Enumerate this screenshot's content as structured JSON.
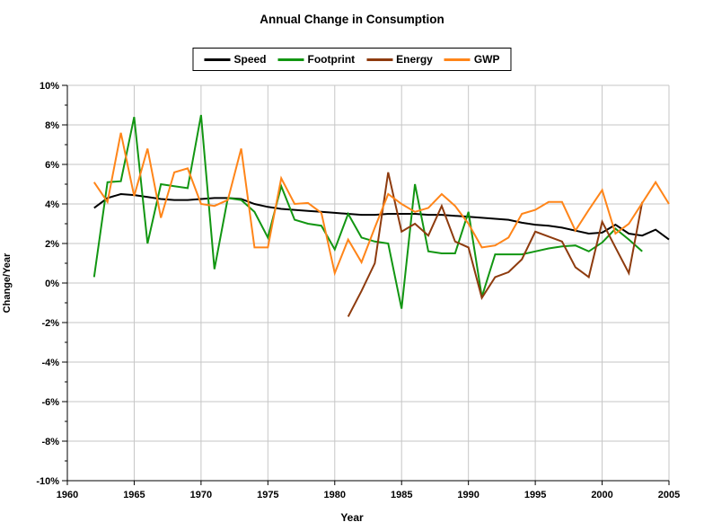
{
  "title": "Annual Change in Consumption",
  "chart_data": {
    "type": "line",
    "title": "Annual Change in Consumption",
    "xlabel": "Year",
    "ylabel": "Change/Year",
    "xlim": [
      1960,
      2005
    ],
    "ylim": [
      -10,
      10
    ],
    "x_ticks": [
      1960,
      1965,
      1970,
      1975,
      1980,
      1985,
      1990,
      1995,
      2000,
      2005
    ],
    "y_ticks": [
      10,
      8,
      6,
      4,
      2,
      0,
      -2,
      -4,
      -6,
      -8,
      -10
    ],
    "y_tick_suffix": "%",
    "y_minor_tick_step": 1,
    "grid": true,
    "legend_position": "top-center",
    "background": "#ffffff",
    "grid_color": "#c6c6c6",
    "axis_color": "#000000",
    "series": [
      {
        "name": "Speed",
        "color": "#000000",
        "points": [
          [
            1962,
            3.8
          ],
          [
            1963,
            4.3
          ],
          [
            1964,
            4.5
          ],
          [
            1965,
            4.45
          ],
          [
            1966,
            4.35
          ],
          [
            1967,
            4.25
          ],
          [
            1968,
            4.2
          ],
          [
            1969,
            4.2
          ],
          [
            1970,
            4.25
          ],
          [
            1971,
            4.3
          ],
          [
            1972,
            4.3
          ],
          [
            1973,
            4.25
          ],
          [
            1974,
            4.0
          ],
          [
            1975,
            3.85
          ],
          [
            1976,
            3.75
          ],
          [
            1977,
            3.7
          ],
          [
            1978,
            3.65
          ],
          [
            1979,
            3.6
          ],
          [
            1980,
            3.55
          ],
          [
            1981,
            3.5
          ],
          [
            1982,
            3.45
          ],
          [
            1983,
            3.45
          ],
          [
            1984,
            3.5
          ],
          [
            1985,
            3.5
          ],
          [
            1986,
            3.5
          ],
          [
            1987,
            3.45
          ],
          [
            1988,
            3.45
          ],
          [
            1989,
            3.4
          ],
          [
            1990,
            3.35
          ],
          [
            1991,
            3.3
          ],
          [
            1992,
            3.25
          ],
          [
            1993,
            3.2
          ],
          [
            1994,
            3.05
          ],
          [
            1995,
            2.95
          ],
          [
            1996,
            2.9
          ],
          [
            1997,
            2.8
          ],
          [
            1998,
            2.65
          ],
          [
            1999,
            2.5
          ],
          [
            2000,
            2.55
          ],
          [
            2001,
            2.95
          ],
          [
            2002,
            2.5
          ],
          [
            2003,
            2.4
          ],
          [
            2004,
            2.7
          ],
          [
            2005,
            2.2
          ]
        ]
      },
      {
        "name": "Footprint",
        "color": "#129612",
        "points": [
          [
            1962,
            0.3
          ],
          [
            1963,
            5.1
          ],
          [
            1964,
            5.15
          ],
          [
            1965,
            8.4
          ],
          [
            1966,
            2.0
          ],
          [
            1967,
            5.0
          ],
          [
            1968,
            4.9
          ],
          [
            1969,
            4.8
          ],
          [
            1970,
            8.5
          ],
          [
            1971,
            0.7
          ],
          [
            1972,
            4.3
          ],
          [
            1973,
            4.2
          ],
          [
            1974,
            3.6
          ],
          [
            1975,
            2.3
          ],
          [
            1976,
            4.9
          ],
          [
            1977,
            3.2
          ],
          [
            1978,
            3.0
          ],
          [
            1979,
            2.9
          ],
          [
            1980,
            1.7
          ],
          [
            1981,
            3.5
          ],
          [
            1982,
            2.3
          ],
          [
            1983,
            2.1
          ],
          [
            1984,
            2.0
          ],
          [
            1985,
            -1.3
          ],
          [
            1986,
            5.0
          ],
          [
            1987,
            1.6
          ],
          [
            1988,
            1.5
          ],
          [
            1989,
            1.5
          ],
          [
            1990,
            3.6
          ],
          [
            1991,
            -0.7
          ],
          [
            1992,
            1.45
          ],
          [
            1993,
            1.45
          ],
          [
            1994,
            1.45
          ],
          [
            1995,
            1.6
          ],
          [
            1996,
            1.75
          ],
          [
            1997,
            1.85
          ],
          [
            1998,
            1.9
          ],
          [
            1999,
            1.6
          ],
          [
            2000,
            2.05
          ],
          [
            2001,
            2.75
          ],
          [
            2002,
            2.2
          ],
          [
            2003,
            1.6
          ]
        ]
      },
      {
        "name": "Energy",
        "color": "#8E3B0E",
        "points": [
          [
            1981,
            -1.7
          ],
          [
            1982,
            -0.4
          ],
          [
            1983,
            1.0
          ],
          [
            1984,
            5.6
          ],
          [
            1985,
            2.6
          ],
          [
            1986,
            3.0
          ],
          [
            1987,
            2.4
          ],
          [
            1988,
            3.9
          ],
          [
            1989,
            2.1
          ],
          [
            1990,
            1.8
          ],
          [
            1991,
            -0.75
          ],
          [
            1992,
            0.3
          ],
          [
            1993,
            0.55
          ],
          [
            1994,
            1.2
          ],
          [
            1995,
            2.6
          ],
          [
            1996,
            2.35
          ],
          [
            1997,
            2.1
          ],
          [
            1998,
            0.8
          ],
          [
            1999,
            0.3
          ],
          [
            2000,
            3.1
          ],
          [
            2001,
            1.8
          ],
          [
            2002,
            0.5
          ],
          [
            2003,
            4.1
          ]
        ]
      },
      {
        "name": "GWP",
        "color": "#FF8519",
        "points": [
          [
            1962,
            5.1
          ],
          [
            1963,
            4.1
          ],
          [
            1964,
            7.6
          ],
          [
            1965,
            4.4
          ],
          [
            1966,
            6.8
          ],
          [
            1967,
            3.3
          ],
          [
            1968,
            5.6
          ],
          [
            1969,
            5.8
          ],
          [
            1970,
            4.0
          ],
          [
            1971,
            3.9
          ],
          [
            1972,
            4.2
          ],
          [
            1973,
            6.8
          ],
          [
            1974,
            1.8
          ],
          [
            1975,
            1.8
          ],
          [
            1976,
            5.3
          ],
          [
            1977,
            4.0
          ],
          [
            1978,
            4.05
          ],
          [
            1979,
            3.55
          ],
          [
            1980,
            0.5
          ],
          [
            1981,
            2.2
          ],
          [
            1982,
            1.05
          ],
          [
            1983,
            2.8
          ],
          [
            1984,
            4.5
          ],
          [
            1985,
            4.0
          ],
          [
            1986,
            3.6
          ],
          [
            1987,
            3.8
          ],
          [
            1988,
            4.5
          ],
          [
            1989,
            3.9
          ],
          [
            1990,
            3.0
          ],
          [
            1991,
            1.8
          ],
          [
            1992,
            1.9
          ],
          [
            1993,
            2.3
          ],
          [
            1994,
            3.5
          ],
          [
            1995,
            3.7
          ],
          [
            1996,
            4.1
          ],
          [
            1997,
            4.1
          ],
          [
            1998,
            2.65
          ],
          [
            1999,
            3.7
          ],
          [
            2000,
            4.7
          ],
          [
            2001,
            2.5
          ],
          [
            2002,
            3.0
          ],
          [
            2003,
            4.05
          ],
          [
            2004,
            5.1
          ],
          [
            2005,
            4.0
          ]
        ]
      }
    ]
  }
}
